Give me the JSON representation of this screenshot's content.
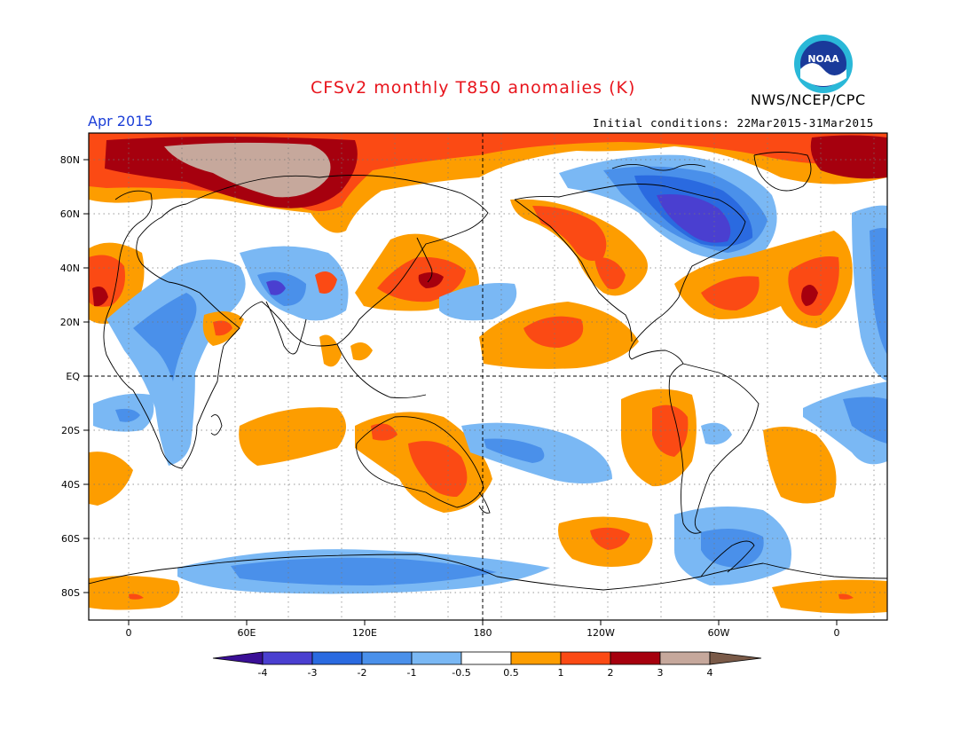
{
  "header": {
    "title": "CFSv2 monthly T850 anomalies (K)",
    "agency": "NWS/NCEP/CPC",
    "month": "Apr 2015",
    "initial_conditions": "Initial conditions: 22Mar2015-31Mar2015",
    "logo_text": "NOAA"
  },
  "axes": {
    "lat_labels": [
      "80N",
      "60N",
      "40N",
      "20N",
      "EQ",
      "20S",
      "40S",
      "60S",
      "80S"
    ],
    "lon_labels": [
      "0",
      "60E",
      "120E",
      "180",
      "120W",
      "60W",
      "0"
    ]
  },
  "colorbar": {
    "labels": [
      "-4",
      "-3",
      "-2",
      "-1",
      "-0.5",
      "0.5",
      "1",
      "2",
      "3",
      "4"
    ],
    "colors": [
      "#3a0f96",
      "#4a3fd0",
      "#2a6ae0",
      "#4a90ea",
      "#7ab8f4",
      "#ffffff",
      "#fd9d00",
      "#fb4a14",
      "#a6000e",
      "#c6a89c",
      "#7a5a48"
    ]
  },
  "colors": {
    "strong_warm": "#a6000e",
    "moderate_warm": "#fb4a14",
    "weak_warm": "#fd9d00",
    "very_warm": "#c6a89c",
    "weak_cold": "#7ab8f4",
    "moderate_cold": "#4a90ea",
    "strong_cold": "#2a6ae0",
    "very_cold": "#4a3fd0",
    "title_red": "#e8141c",
    "month_blue": "#1c3fd8"
  }
}
